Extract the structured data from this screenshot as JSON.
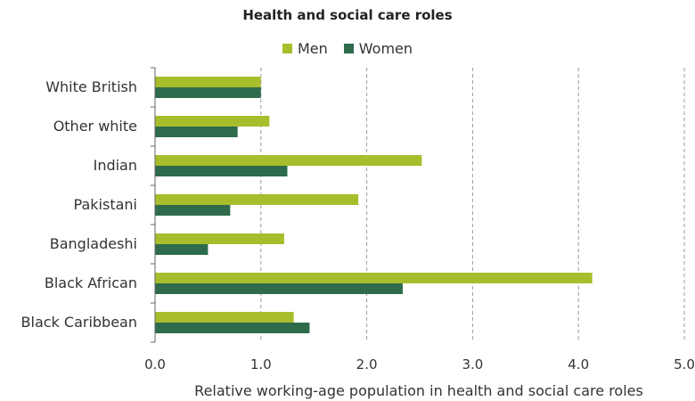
{
  "chart_data": {
    "type": "bar",
    "orientation": "horizontal",
    "title": "Health and social care roles",
    "categories": [
      "White British",
      "Other white",
      "Indian",
      "Pakistani",
      "Bangladeshi",
      "Black African",
      "Black Caribbean"
    ],
    "series": [
      {
        "name": "Men",
        "color": "#a8bd2c",
        "values": [
          1.0,
          1.08,
          2.52,
          1.92,
          1.22,
          4.13,
          1.31
        ]
      },
      {
        "name": "Women",
        "color": "#2e6b4c",
        "values": [
          1.0,
          0.78,
          1.25,
          0.71,
          0.5,
          2.34,
          1.46
        ]
      }
    ],
    "xlabel": "Relative working-age population in health and social care roles",
    "ylabel": "",
    "xlim": [
      0,
      5
    ],
    "xticks": [
      "0.0",
      "1.0",
      "2.0",
      "3.0",
      "4.0",
      "5.0"
    ],
    "grid": "vertical dashed",
    "legend_position": "top-center"
  }
}
